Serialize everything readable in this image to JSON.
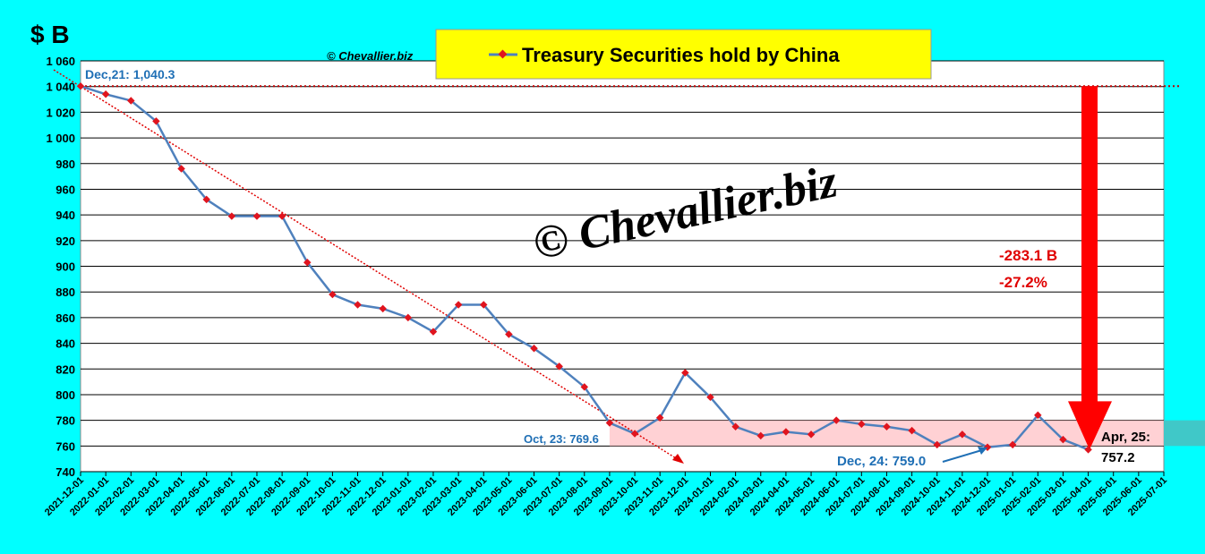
{
  "chart_data": {
    "type": "line",
    "y_unit_label": "$ B",
    "copyright": "© Chevallier.biz",
    "watermark": "© Chevallier.biz",
    "categories": [
      "2021-12-01",
      "2022-01-01",
      "2022-02-01",
      "2022-03-01",
      "2022-04-01",
      "2022-05-01",
      "2022-06-01",
      "2022-07-01",
      "2022-08-01",
      "2022-09-01",
      "2022-10-01",
      "2022-11-01",
      "2022-12-01",
      "2023-01-01",
      "2023-02-01",
      "2023-03-01",
      "2023-04-01",
      "2023-05-01",
      "2023-06-01",
      "2023-07-01",
      "2023-08-01",
      "2023-09-01",
      "2023-10-01",
      "2023-11-01",
      "2023-12-01",
      "2024-01-01",
      "2024-02-01",
      "2024-03-01",
      "2024-04-01",
      "2024-05-01",
      "2024-06-01",
      "2024-07-01",
      "2024-08-01",
      "2024-09-01",
      "2024-10-01",
      "2024-11-01",
      "2024-12-01",
      "2025-01-01",
      "2025-02-01",
      "2025-03-01",
      "2025-04-01",
      "2025-05-01",
      "2025-06-01",
      "2025-07-01"
    ],
    "series": [
      {
        "name": "Treasury Securities hold by China",
        "color": "#4f81bd",
        "marker_color": "#e0141e",
        "values": [
          1040.3,
          1034,
          1029,
          1013,
          976,
          952,
          939,
          939,
          939,
          903,
          878,
          870,
          867,
          860,
          849,
          870,
          870,
          847,
          836,
          822,
          806,
          778,
          769.6,
          782,
          817,
          798,
          775,
          768,
          771,
          769,
          780,
          777,
          775,
          772,
          761,
          769,
          759.0,
          761,
          784,
          765,
          757.2,
          null,
          null,
          null
        ]
      }
    ],
    "ylim": [
      740,
      1060
    ],
    "yticks": [
      740,
      760,
      780,
      800,
      820,
      840,
      860,
      880,
      900,
      920,
      940,
      960,
      980,
      {
        "value": 1000,
        "label": "1 000"
      },
      {
        "value": 1020,
        "label": "1 020"
      },
      {
        "value": 1040,
        "label": "1 040"
      },
      {
        "value": 1060,
        "label": "1 060"
      }
    ],
    "grid": true,
    "highlight_band": [
      760,
      780
    ],
    "annotations": [
      "Dec,21: 1,040.3",
      "Oct, 23: 769.6",
      "Dec, 24: 759.0",
      "Apr, 25:",
      "757.2",
      "-283.1 B",
      "-27.2%"
    ]
  }
}
